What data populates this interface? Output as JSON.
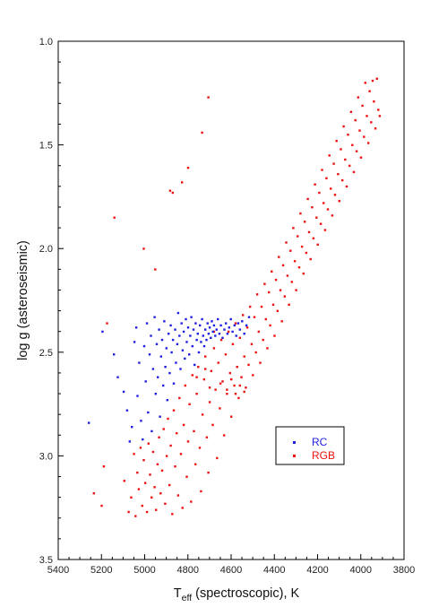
{
  "chart_data": {
    "type": "scatter",
    "title": "",
    "xlabel": {
      "main": "T",
      "sub": "eff",
      "rest": " (spectroscopic), K"
    },
    "ylabel": "log g (asteroseismic)",
    "xlim": [
      5400,
      3800
    ],
    "ylim": [
      1.0,
      3.5
    ],
    "x_inverted": true,
    "y_inverted": true,
    "xticks": [
      5400,
      5200,
      5000,
      4800,
      4600,
      4400,
      4200,
      4000,
      3800
    ],
    "yticks": [
      "1.0",
      "1.5",
      "2.0",
      "2.5",
      "3.0",
      "3.5"
    ],
    "grid": false,
    "legend": {
      "placement": "right-middle",
      "entries": [
        "RC",
        "RGB"
      ]
    },
    "series": [
      {
        "name": "RC",
        "color": "#1f1fe0",
        "marker": "dot",
        "points": [
          [
            5259,
            2.84
          ],
          [
            5196,
            2.4
          ],
          [
            5143,
            2.51
          ],
          [
            5125,
            2.62
          ],
          [
            5098,
            2.69
          ],
          [
            5082,
            2.78
          ],
          [
            5070,
            2.93
          ],
          [
            5060,
            2.86
          ],
          [
            5048,
            2.45
          ],
          [
            5040,
            2.38
          ],
          [
            5034,
            2.71
          ],
          [
            5026,
            2.55
          ],
          [
            5018,
            2.83
          ],
          [
            5010,
            2.92
          ],
          [
            5003,
            2.47
          ],
          [
            4996,
            2.64
          ],
          [
            4990,
            2.36
          ],
          [
            4985,
            2.79
          ],
          [
            4978,
            2.51
          ],
          [
            4972,
            2.42
          ],
          [
            4968,
            2.88
          ],
          [
            4962,
            2.58
          ],
          [
            4955,
            2.33
          ],
          [
            4950,
            2.7
          ],
          [
            4945,
            2.46
          ],
          [
            4940,
            2.62
          ],
          [
            4934,
            2.39
          ],
          [
            4930,
            2.81
          ],
          [
            4925,
            2.52
          ],
          [
            4920,
            2.44
          ],
          [
            4915,
            2.66
          ],
          [
            4910,
            2.35
          ],
          [
            4905,
            2.57
          ],
          [
            4900,
            2.48
          ],
          [
            4896,
            2.73
          ],
          [
            4890,
            2.41
          ],
          [
            4885,
            2.6
          ],
          [
            4880,
            2.37
          ],
          [
            4876,
            2.5
          ],
          [
            4870,
            2.44
          ],
          [
            4866,
            2.65
          ],
          [
            4860,
            2.39
          ],
          [
            4856,
            2.55
          ],
          [
            4850,
            2.46
          ],
          [
            4846,
            2.31
          ],
          [
            4840,
            2.42
          ],
          [
            4835,
            2.58
          ],
          [
            4830,
            2.36
          ],
          [
            4825,
            2.49
          ],
          [
            4820,
            2.4
          ],
          [
            4815,
            2.53
          ],
          [
            4810,
            2.34
          ],
          [
            4806,
            2.45
          ],
          [
            4800,
            2.38
          ],
          [
            4795,
            2.51
          ],
          [
            4790,
            2.42
          ],
          [
            4785,
            2.33
          ],
          [
            4780,
            2.47
          ],
          [
            4775,
            2.39
          ],
          [
            4770,
            2.56
          ],
          [
            4765,
            2.36
          ],
          [
            4760,
            2.44
          ],
          [
            4755,
            2.41
          ],
          [
            4750,
            2.5
          ],
          [
            4745,
            2.37
          ],
          [
            4740,
            2.45
          ],
          [
            4735,
            2.34
          ],
          [
            4730,
            2.42
          ],
          [
            4725,
            2.47
          ],
          [
            4720,
            2.39
          ],
          [
            4715,
            2.44
          ],
          [
            4710,
            2.36
          ],
          [
            4705,
            2.41
          ],
          [
            4700,
            2.38
          ],
          [
            4695,
            2.43
          ],
          [
            4690,
            2.35
          ],
          [
            4685,
            2.4
          ],
          [
            4680,
            2.37
          ],
          [
            4674,
            2.42
          ],
          [
            4668,
            2.39
          ],
          [
            4662,
            2.34
          ],
          [
            4655,
            2.41
          ],
          [
            4648,
            2.37
          ],
          [
            4640,
            2.43
          ],
          [
            4632,
            2.39
          ],
          [
            4625,
            2.36
          ],
          [
            4618,
            2.41
          ],
          [
            4610,
            2.38
          ],
          [
            4602,
            2.34
          ],
          [
            4594,
            2.4
          ],
          [
            4585,
            2.37
          ],
          [
            4577,
            2.42
          ],
          [
            4568,
            2.36
          ],
          [
            4560,
            2.39
          ],
          [
            4550,
            2.35
          ],
          [
            4540,
            2.41
          ],
          [
            4530,
            2.37
          ],
          [
            4518,
            2.33
          ]
        ]
      },
      {
        "name": "RGB",
        "color": "#ee1111",
        "marker": "dot",
        "points": [
          [
            5236,
            3.18
          ],
          [
            5200,
            3.24
          ],
          [
            5190,
            3.05
          ],
          [
            5175,
            2.36
          ],
          [
            5141,
            1.85
          ],
          [
            5095,
            3.12
          ],
          [
            5075,
            3.27
          ],
          [
            5063,
            3.2
          ],
          [
            5050,
            2.99
          ],
          [
            5043,
            3.29
          ],
          [
            5035,
            3.08
          ],
          [
            5028,
            3.16
          ],
          [
            5020,
            2.96
          ],
          [
            5012,
            3.24
          ],
          [
            5005,
            3.02
          ],
          [
            4998,
            3.13
          ],
          [
            4990,
            3.27
          ],
          [
            4983,
            2.94
          ],
          [
            4976,
            3.09
          ],
          [
            4969,
            3.2
          ],
          [
            4962,
            2.98
          ],
          [
            4955,
            3.15
          ],
          [
            4948,
            3.26
          ],
          [
            4941,
            3.04
          ],
          [
            4934,
            2.91
          ],
          [
            4927,
            3.18
          ],
          [
            4920,
            3.07
          ],
          [
            4913,
            2.87
          ],
          [
            4906,
            3.23
          ],
          [
            4899,
            3.0
          ],
          [
            4893,
            2.82
          ],
          [
            4886,
            3.14
          ],
          [
            4880,
            2.95
          ],
          [
            4873,
            3.28
          ],
          [
            4866,
            2.78
          ],
          [
            4860,
            3.05
          ],
          [
            4853,
            2.89
          ],
          [
            4846,
            3.19
          ],
          [
            4840,
            2.72
          ],
          [
            4833,
            2.99
          ],
          [
            4826,
            3.25
          ],
          [
            4820,
            2.85
          ],
          [
            4813,
            2.66
          ],
          [
            4806,
            3.1
          ],
          [
            4800,
            2.93
          ],
          [
            4793,
            2.75
          ],
          [
            4786,
            3.22
          ],
          [
            4780,
            2.61
          ],
          [
            4773,
            2.88
          ],
          [
            4766,
            3.04
          ],
          [
            4760,
            2.7
          ],
          [
            4753,
            2.57
          ],
          [
            4746,
            2.96
          ],
          [
            4740,
            3.17
          ],
          [
            4733,
            2.8
          ],
          [
            4726,
            2.63
          ],
          [
            4720,
            2.52
          ],
          [
            4713,
            2.91
          ],
          [
            4706,
            3.08
          ],
          [
            4700,
            2.74
          ],
          [
            4693,
            2.59
          ],
          [
            4686,
            2.85
          ],
          [
            4680,
            2.48
          ],
          [
            4673,
            2.68
          ],
          [
            4666,
            3.01
          ],
          [
            4660,
            2.55
          ],
          [
            4653,
            2.77
          ],
          [
            4646,
            2.44
          ],
          [
            4640,
            2.64
          ],
          [
            4633,
            2.9
          ],
          [
            4626,
            2.51
          ],
          [
            4620,
            2.7
          ],
          [
            4613,
            2.4
          ],
          [
            4606,
            2.6
          ],
          [
            4600,
            2.81
          ],
          [
            4593,
            2.46
          ],
          [
            4586,
            2.66
          ],
          [
            4580,
            2.36
          ],
          [
            4573,
            2.57
          ],
          [
            4566,
            2.72
          ],
          [
            4560,
            2.43
          ],
          [
            4553,
            2.62
          ],
          [
            4546,
            2.32
          ],
          [
            4540,
            2.52
          ],
          [
            4533,
            2.67
          ],
          [
            4526,
            2.38
          ],
          [
            4520,
            2.56
          ],
          [
            4513,
            2.28
          ],
          [
            4506,
            2.46
          ],
          [
            4500,
            2.61
          ],
          [
            4493,
            2.33
          ],
          [
            4486,
            2.5
          ],
          [
            4480,
            2.22
          ],
          [
            4473,
            2.4
          ],
          [
            4466,
            2.55
          ],
          [
            4460,
            2.28
          ],
          [
            4453,
            2.44
          ],
          [
            4446,
            2.17
          ],
          [
            4440,
            2.34
          ],
          [
            4433,
            2.48
          ],
          [
            4426,
            2.21
          ],
          [
            4420,
            2.37
          ],
          [
            4413,
            2.11
          ],
          [
            4406,
            2.27
          ],
          [
            4400,
            2.42
          ],
          [
            4393,
            2.15
          ],
          [
            4386,
            2.3
          ],
          [
            4380,
            2.04
          ],
          [
            4373,
            2.2
          ],
          [
            4366,
            2.35
          ],
          [
            4360,
            2.08
          ],
          [
            4353,
            2.23
          ],
          [
            4346,
            1.97
          ],
          [
            4340,
            2.13
          ],
          [
            4333,
            2.27
          ],
          [
            4326,
            2.01
          ],
          [
            4320,
            2.16
          ],
          [
            4313,
            1.9
          ],
          [
            4306,
            2.06
          ],
          [
            4300,
            2.2
          ],
          [
            4293,
            1.94
          ],
          [
            4286,
            2.09
          ],
          [
            4280,
            1.83
          ],
          [
            4273,
            1.99
          ],
          [
            4266,
            2.12
          ],
          [
            4260,
            1.87
          ],
          [
            4253,
            2.02
          ],
          [
            4246,
            1.76
          ],
          [
            4240,
            1.92
          ],
          [
            4233,
            2.05
          ],
          [
            4226,
            1.8
          ],
          [
            4220,
            1.95
          ],
          [
            4213,
            1.69
          ],
          [
            4206,
            1.85
          ],
          [
            4200,
            1.98
          ],
          [
            4193,
            1.73
          ],
          [
            4186,
            1.88
          ],
          [
            4180,
            1.62
          ],
          [
            4173,
            1.78
          ],
          [
            4166,
            1.91
          ],
          [
            4160,
            1.66
          ],
          [
            4153,
            1.81
          ],
          [
            4146,
            1.55
          ],
          [
            4140,
            1.71
          ],
          [
            4133,
            1.84
          ],
          [
            4126,
            1.59
          ],
          [
            4120,
            1.74
          ],
          [
            4113,
            1.48
          ],
          [
            4106,
            1.64
          ],
          [
            4100,
            1.77
          ],
          [
            4093,
            1.52
          ],
          [
            4086,
            1.67
          ],
          [
            4080,
            1.41
          ],
          [
            4073,
            1.57
          ],
          [
            4066,
            1.7
          ],
          [
            4060,
            1.45
          ],
          [
            4053,
            1.6
          ],
          [
            4046,
            1.34
          ],
          [
            4040,
            1.5
          ],
          [
            4033,
            1.63
          ],
          [
            4026,
            1.38
          ],
          [
            4020,
            1.53
          ],
          [
            4013,
            1.27
          ],
          [
            4006,
            1.43
          ],
          [
            4000,
            1.56
          ],
          [
            3993,
            1.31
          ],
          [
            3986,
            1.46
          ],
          [
            3980,
            1.2
          ],
          [
            3973,
            1.36
          ],
          [
            3966,
            1.49
          ],
          [
            3960,
            1.24
          ],
          [
            3953,
            1.39
          ],
          [
            3946,
            1.19
          ],
          [
            3940,
            1.29
          ],
          [
            3933,
            1.42
          ],
          [
            3926,
            1.18
          ],
          [
            3920,
            1.33
          ],
          [
            3913,
            1.36
          ],
          [
            4735,
            1.44
          ],
          [
            4706,
            1.27
          ],
          [
            4883,
            1.72
          ],
          [
            4871,
            1.73
          ],
          [
            4828,
            1.68
          ],
          [
            4800,
            1.61
          ],
          [
            4952,
            2.1
          ],
          [
            5005,
            2.0
          ],
          [
            4680,
            2.4
          ],
          [
            4650,
            2.65
          ],
          [
            4620,
            2.68
          ],
          [
            4600,
            2.63
          ],
          [
            4580,
            2.7
          ],
          [
            4560,
            2.66
          ],
          [
            4540,
            2.69
          ],
          [
            4720,
            2.58
          ],
          [
            4760,
            2.62
          ],
          [
            4700,
            2.67
          ]
        ]
      }
    ]
  }
}
